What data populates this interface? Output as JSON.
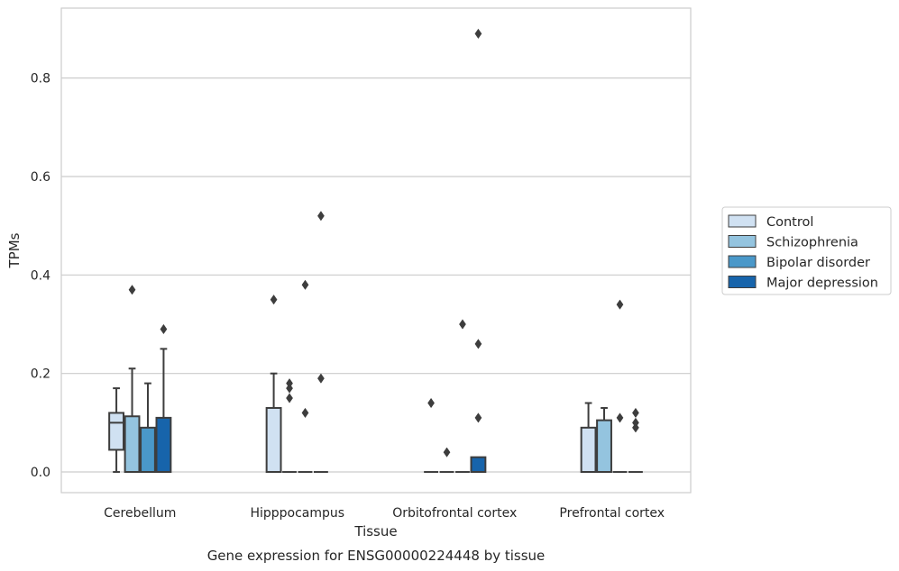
{
  "chart_data": {
    "type": "box",
    "title": "",
    "xlabel": "Tissue",
    "ylabel": "TPMs",
    "caption": "Gene expression for ENSG00000224448 by tissue",
    "ylim": [
      -0.042,
      0.942
    ],
    "yticks": [
      0.0,
      0.2,
      0.4,
      0.6,
      0.8
    ],
    "ytick_labels": [
      "0.0",
      "0.2",
      "0.4",
      "0.6",
      "0.8"
    ],
    "grid": "y",
    "legend_position": "right",
    "categories": [
      "Cerebellum",
      "Hipppocampus",
      "Orbitofrontal cortex",
      "Prefrontal cortex"
    ],
    "series": [
      {
        "name": "Control",
        "color": "#d0e1f2",
        "boxes": [
          {
            "q1": 0.045,
            "median": 0.1,
            "q3": 0.12,
            "whisker_low": 0.0,
            "whisker_high": 0.17,
            "outliers": []
          },
          {
            "q1": 0.0,
            "median": 0.0,
            "q3": 0.13,
            "whisker_low": 0.0,
            "whisker_high": 0.2,
            "outliers": [
              0.35
            ]
          },
          {
            "q1": 0.0,
            "median": 0.0,
            "q3": 0.0,
            "whisker_low": 0.0,
            "whisker_high": 0.0,
            "outliers": [
              0.14
            ]
          },
          {
            "q1": 0.0,
            "median": 0.0,
            "q3": 0.09,
            "whisker_low": 0.0,
            "whisker_high": 0.14,
            "outliers": []
          }
        ]
      },
      {
        "name": "Schizophrenia",
        "color": "#94c4df",
        "boxes": [
          {
            "q1": 0.0,
            "median": 0.0,
            "q3": 0.113,
            "whisker_low": 0.0,
            "whisker_high": 0.21,
            "outliers": [
              0.37
            ]
          },
          {
            "q1": 0.0,
            "median": 0.0,
            "q3": 0.0,
            "whisker_low": 0.0,
            "whisker_high": 0.0,
            "outliers": [
              0.15,
              0.17,
              0.18
            ]
          },
          {
            "q1": 0.0,
            "median": 0.0,
            "q3": 0.0,
            "whisker_low": 0.0,
            "whisker_high": 0.0,
            "outliers": [
              0.04
            ]
          },
          {
            "q1": 0.0,
            "median": 0.0,
            "q3": 0.105,
            "whisker_low": 0.0,
            "whisker_high": 0.13,
            "outliers": []
          }
        ]
      },
      {
        "name": "Bipolar disorder",
        "color": "#4a98c9",
        "boxes": [
          {
            "q1": 0.0,
            "median": 0.0,
            "q3": 0.09,
            "whisker_low": 0.0,
            "whisker_high": 0.18,
            "outliers": []
          },
          {
            "q1": 0.0,
            "median": 0.0,
            "q3": 0.0,
            "whisker_low": 0.0,
            "whisker_high": 0.0,
            "outliers": [
              0.12,
              0.38
            ]
          },
          {
            "q1": 0.0,
            "median": 0.0,
            "q3": 0.0,
            "whisker_low": 0.0,
            "whisker_high": 0.0,
            "outliers": [
              0.3
            ]
          },
          {
            "q1": 0.0,
            "median": 0.0,
            "q3": 0.0,
            "whisker_low": 0.0,
            "whisker_high": 0.0,
            "outliers": [
              0.34,
              0.11
            ]
          }
        ]
      },
      {
        "name": "Major depression",
        "color": "#1764ab",
        "boxes": [
          {
            "q1": 0.0,
            "median": 0.0,
            "q3": 0.11,
            "whisker_low": 0.0,
            "whisker_high": 0.25,
            "outliers": [
              0.29
            ]
          },
          {
            "q1": 0.0,
            "median": 0.0,
            "q3": 0.0,
            "whisker_low": 0.0,
            "whisker_high": 0.0,
            "outliers": [
              0.19,
              0.52
            ]
          },
          {
            "q1": 0.0,
            "median": 0.0,
            "q3": 0.03,
            "whisker_low": 0.0,
            "whisker_high": 0.03,
            "outliers": [
              0.11,
              0.26,
              0.89
            ]
          },
          {
            "q1": 0.0,
            "median": 0.0,
            "q3": 0.0,
            "whisker_low": 0.0,
            "whisker_high": 0.0,
            "outliers": [
              0.09,
              0.1,
              0.12
            ]
          }
        ]
      }
    ]
  }
}
